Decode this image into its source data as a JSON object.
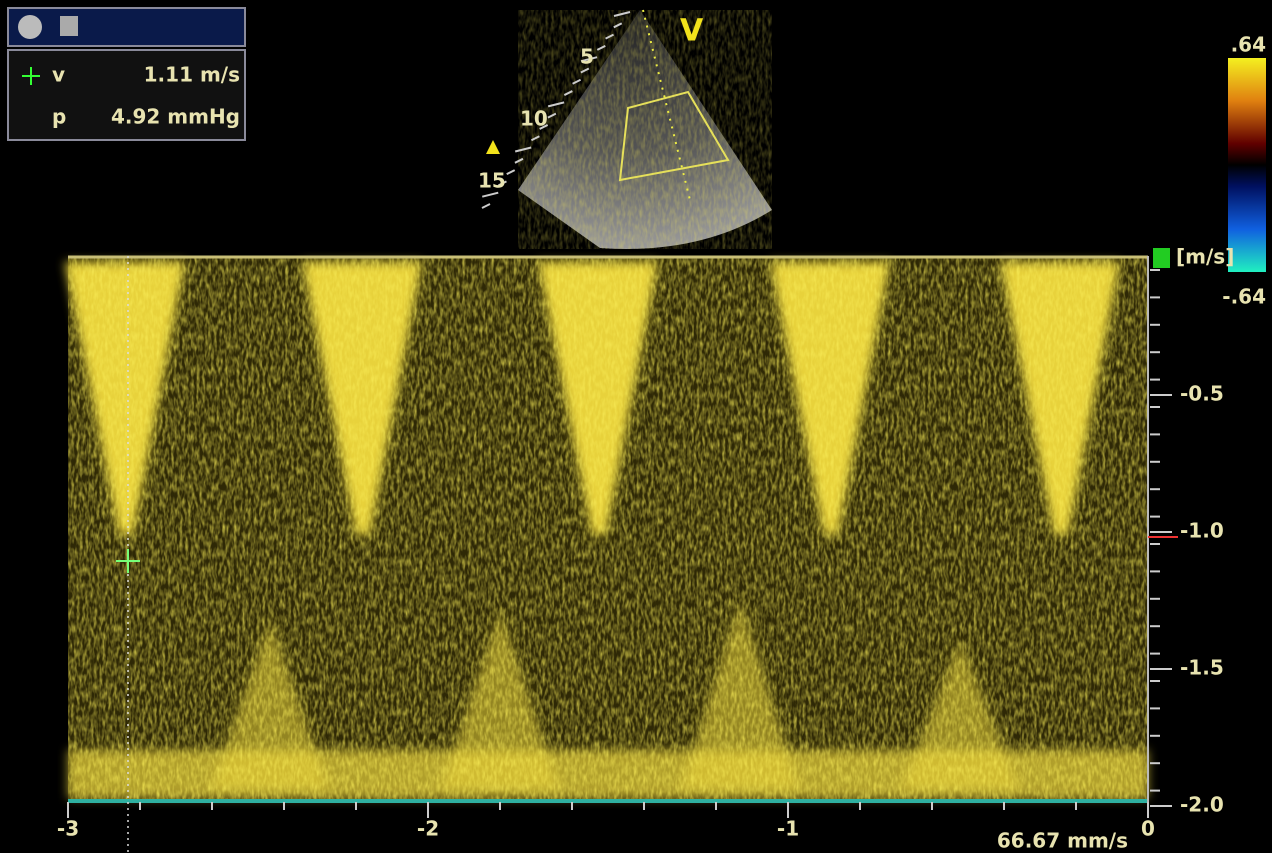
{
  "measurement": {
    "rows": [
      {
        "label": "v",
        "value": "1.11 m/s"
      },
      {
        "label": "p",
        "value": "4.92 mmHg"
      }
    ]
  },
  "sector": {
    "depth_labels": [
      "5",
      "10",
      "15"
    ],
    "view_label": "V"
  },
  "color_bar": {
    "top": ".64",
    "unit": "[m/s]",
    "bottom": "-.64"
  },
  "spectrum": {
    "velocity_labels": [
      "-0.5",
      "-1.0",
      "-1.5",
      "-2.0"
    ],
    "time_labels": [
      "-3",
      "-2",
      "-1",
      "0"
    ],
    "sweep_speed": "66.67 mm/s"
  }
}
